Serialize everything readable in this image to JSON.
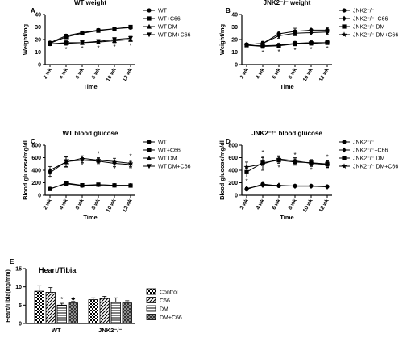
{
  "chart_data": [
    {
      "panel": "A",
      "type": "line",
      "title": "WT weight",
      "xlabel": "Time",
      "ylabel": "Weight/mg",
      "categories": [
        "2 wk",
        "4 wk",
        "6 wk",
        "8 wk",
        "10 wk",
        "12 wk"
      ],
      "yticks": [
        "0",
        "10",
        "20",
        "30",
        "40"
      ],
      "ylim": [
        0,
        40
      ],
      "grid": false,
      "legend": "right",
      "series": [
        {
          "name": "WT",
          "marker": "circle",
          "values": [
            17.5,
            23,
            25.5,
            27.5,
            28.5,
            29.5
          ],
          "err": [
            1,
            1.2,
            1,
            1.2,
            1,
            1
          ]
        },
        {
          "name": "WT+C66",
          "marker": "square",
          "values": [
            17,
            22,
            25,
            27,
            28.5,
            30
          ],
          "err": [
            1,
            1.2,
            1,
            1.2,
            1,
            1
          ]
        },
        {
          "name": "WT DM",
          "marker": "triangle-up",
          "values": [
            16.5,
            17.5,
            17.5,
            18,
            19,
            20
          ],
          "err": [
            1.2,
            1.5,
            1.5,
            1.5,
            1.5,
            1.5
          ]
        },
        {
          "name": "WT DM+C66",
          "marker": "triangle-down",
          "values": [
            16.5,
            17,
            17.5,
            18.5,
            20,
            21
          ],
          "err": [
            1.2,
            1.5,
            1.5,
            1.5,
            1.5,
            1.5
          ]
        }
      ],
      "asterisks": [
        "4 wk",
        "6 wk",
        "8 wk",
        "10 wk",
        "12 wk"
      ]
    },
    {
      "panel": "B",
      "type": "line",
      "title": "JNK2⁻/⁻ weight",
      "xlabel": "Time",
      "ylabel": "Weight/mg",
      "categories": [
        "2 wk",
        "4 wk",
        "6 wk",
        "8 wk",
        "10 wk",
        "12 wk"
      ],
      "yticks": [
        "0",
        "10",
        "20",
        "30",
        "40"
      ],
      "ylim": [
        0,
        40
      ],
      "grid": false,
      "legend": "right",
      "series": [
        {
          "name": "JNK2⁻/⁻",
          "marker": "circle",
          "values": [
            16,
            17,
            24.5,
            26.5,
            27.5,
            27.5
          ],
          "err": [
            1.2,
            1.5,
            2,
            2.5,
            2.5,
            2
          ]
        },
        {
          "name": "JNK2⁻/⁻+C66",
          "marker": "diamond",
          "values": [
            16,
            17,
            23,
            25,
            25.5,
            26
          ],
          "err": [
            1.2,
            1.5,
            2,
            2,
            2,
            2
          ]
        },
        {
          "name": "JNK2⁻/⁻ DM",
          "marker": "square",
          "values": [
            15.5,
            14.5,
            15,
            16.5,
            17,
            17.5
          ],
          "err": [
            1.2,
            1.5,
            1.5,
            1.5,
            1.5,
            1.5
          ]
        },
        {
          "name": "JNK2⁻/⁻ DM+C66",
          "marker": "star",
          "values": [
            15.5,
            15,
            15.5,
            17,
            17.5,
            17.5
          ],
          "err": [
            1.2,
            1.5,
            1.5,
            1.5,
            1.5,
            1.5
          ]
        }
      ],
      "asterisks": [
        "4 wk",
        "6 wk",
        "8 wk",
        "10 wk",
        "12 wk"
      ]
    },
    {
      "panel": "C",
      "type": "line",
      "title": "WT blood glucose",
      "xlabel": "Time",
      "ylabel": "Blood glucose/mg/dl",
      "categories": [
        "2 wk",
        "4 wk",
        "6 wk",
        "8 wk",
        "10 wk",
        "12 wk"
      ],
      "yticks": [
        "0",
        "200",
        "400",
        "600",
        "800"
      ],
      "ylim": [
        0,
        800
      ],
      "grid": false,
      "legend": "right",
      "series": [
        {
          "name": "WT",
          "marker": "circle",
          "values": [
            105,
            185,
            155,
            165,
            160,
            160
          ],
          "err": [
            15,
            30,
            15,
            15,
            15,
            15
          ]
        },
        {
          "name": "WT+C66",
          "marker": "square",
          "values": [
            100,
            195,
            160,
            170,
            158,
            155
          ],
          "err": [
            15,
            30,
            15,
            15,
            15,
            15
          ]
        },
        {
          "name": "WT DM",
          "marker": "triangle-up",
          "values": [
            400,
            530,
            590,
            560,
            540,
            510
          ],
          "err": [
            60,
            80,
            40,
            40,
            50,
            50
          ]
        },
        {
          "name": "WT DM+C66",
          "marker": "triangle-down",
          "values": [
            360,
            540,
            560,
            545,
            510,
            490
          ],
          "err": [
            60,
            80,
            40,
            40,
            50,
            50
          ]
        }
      ],
      "asterisks": [
        "2 wk",
        "6 wk",
        "8 wk",
        "10 wk",
        "12 wk"
      ]
    },
    {
      "panel": "D",
      "type": "line",
      "title": "JNK2⁻/⁻ blood glucose",
      "xlabel": "Time",
      "ylabel": "Blood glucose/mg/dl",
      "categories": [
        "2 wk",
        "4 wk",
        "6 wk",
        "8 wk",
        "10 wk",
        "12 wk"
      ],
      "yticks": [
        "0",
        "200",
        "400",
        "600",
        "800"
      ],
      "ylim": [
        0,
        800
      ],
      "grid": false,
      "legend": "right",
      "series": [
        {
          "name": "JNK2⁻/⁻",
          "marker": "circle",
          "values": [
            95,
            180,
            150,
            150,
            150,
            140
          ],
          "err": [
            15,
            15,
            15,
            15,
            15,
            15
          ]
        },
        {
          "name": "JNK2⁻/⁻+C66",
          "marker": "diamond",
          "values": [
            110,
            160,
            160,
            145,
            145,
            135
          ],
          "err": [
            15,
            15,
            15,
            15,
            15,
            15
          ]
        },
        {
          "name": "JNK2⁻/⁻ DM",
          "marker": "square",
          "values": [
            370,
            520,
            560,
            530,
            520,
            500
          ],
          "err": [
            80,
            100,
            50,
            50,
            50,
            50
          ]
        },
        {
          "name": "JNK2⁻/⁻ DM+C66",
          "marker": "star",
          "values": [
            450,
            500,
            580,
            550,
            510,
            490
          ],
          "err": [
            80,
            100,
            50,
            50,
            50,
            50
          ]
        }
      ],
      "asterisks": [
        "2 wk",
        "4 wk",
        "6 wk",
        "8 wk",
        "10 wk",
        "12 wk"
      ]
    },
    {
      "panel": "E",
      "type": "bar",
      "title": "Heart/Tibia",
      "xlabel": "",
      "ylabel": "Heart/Tibia(mg/mm)",
      "categories": [
        "WT",
        "JNK2⁻/⁻"
      ],
      "yticks": [
        "0",
        "5",
        "10",
        "15"
      ],
      "ylim": [
        0,
        15
      ],
      "grid": false,
      "legend": "right",
      "series": [
        {
          "name": "Control",
          "pattern": "checker",
          "values": [
            8.8,
            6.5
          ],
          "err": [
            1.5,
            0.5
          ]
        },
        {
          "name": "C66",
          "pattern": "diagonal",
          "values": [
            8.5,
            6.8
          ],
          "err": [
            1.3,
            0.6
          ]
        },
        {
          "name": "DM",
          "pattern": "horizontal",
          "values": [
            5.0,
            5.8
          ],
          "err": [
            0.5,
            1.2
          ]
        },
        {
          "name": "DM+C66",
          "pattern": "dots",
          "values": [
            5.6,
            5.6
          ],
          "err": [
            0.4,
            0.6
          ]
        }
      ],
      "annotations": [
        {
          "category": "WT",
          "series": "DM",
          "symbol": "*"
        },
        {
          "category": "WT",
          "series": "DM+C66",
          "symbol": "◆"
        }
      ]
    }
  ]
}
